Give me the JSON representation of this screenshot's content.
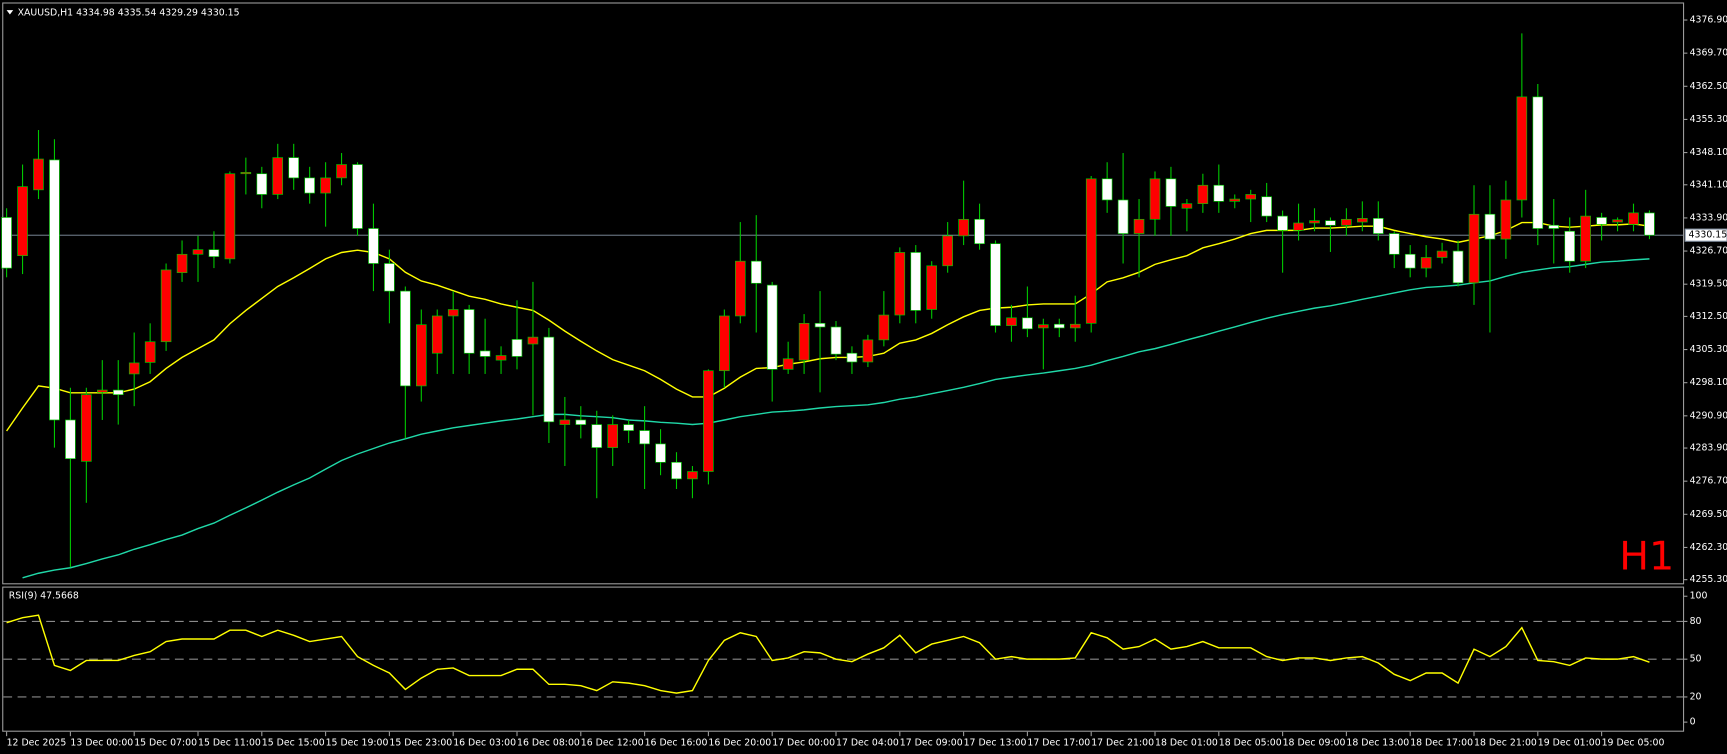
{
  "chart_data": [
    {
      "type": "candlestick",
      "title": "XAUUSD,H1  4334.98 4335.54 4329.29 4330.15",
      "timeframe_label": "H1",
      "timeframe_color": "#ff0000",
      "categories": [
        "12 Dec 2025",
        null,
        null,
        null,
        "13 Dec 00:00",
        null,
        null,
        null,
        "15 Dec 07:00",
        null,
        null,
        null,
        "15 Dec 11:00",
        null,
        null,
        null,
        "15 Dec 15:00",
        null,
        null,
        null,
        "15 Dec 19:00",
        null,
        null,
        null,
        "15 Dec 23:00",
        null,
        null,
        null,
        "16 Dec 03:00",
        null,
        null,
        null,
        "16 Dec 08:00",
        null,
        null,
        null,
        "16 Dec 12:00",
        null,
        null,
        null,
        "16 Dec 16:00",
        null,
        null,
        null,
        "16 Dec 20:00",
        null,
        null,
        null,
        "17 Dec 00:00",
        null,
        null,
        null,
        "17 Dec 04:00",
        null,
        null,
        null,
        "17 Dec 09:00",
        null,
        null,
        null,
        "17 Dec 13:00",
        null,
        null,
        null,
        "17 Dec 17:00",
        null,
        null,
        null,
        "17 Dec 21:00",
        null,
        null,
        null,
        "18 Dec 01:00",
        null,
        null,
        null,
        "18 Dec 05:00",
        null,
        null,
        null,
        "18 Dec 09:00",
        null,
        null,
        null,
        "18 Dec 13:00",
        null,
        null,
        null,
        "18 Dec 17:00",
        null,
        null,
        null,
        "18 Dec 21:00",
        null,
        null,
        null,
        "19 Dec 01:00",
        null,
        null,
        null,
        "19 Dec 05:00",
        null,
        null,
        null
      ],
      "open": [
        4334,
        4325.7,
        4340,
        4346.5,
        4290,
        4281,
        4296,
        4296.5,
        4300,
        4302.5,
        4307,
        4322,
        4326,
        4327,
        4325,
        4343.5,
        4343.5,
        4339,
        4347,
        4342.6,
        4339.3,
        4342.6,
        4345.5,
        4331.6,
        4324,
        4318,
        4297.4,
        4304.5,
        4312.6,
        4314,
        4305,
        4303,
        4307.5,
        4306.5,
        4308,
        4289,
        4290,
        4289,
        4284,
        4289,
        4287.7,
        4284.8,
        4280.8,
        4277.2,
        4278.8,
        4300.7,
        4312.6,
        4324.5,
        4319.3,
        4301,
        4303,
        4311,
        4310.2,
        4304.5,
        4302.6,
        4307.4,
        4312.8,
        4326.4,
        4314,
        4323.5,
        4330,
        4333.6,
        4328.3,
        4310.5,
        4312.2,
        4310,
        4310.8,
        4310,
        4311,
        4342.4,
        4337.8,
        4330.5,
        4333.6,
        4342.4,
        4336,
        4337,
        4341,
        4337.5,
        4338,
        4338.5,
        4334.3,
        4331.2,
        4332.8,
        4333.3,
        4332.3,
        4333,
        4333.8,
        4330.5,
        4326,
        4323,
        4325.3,
        4326.7,
        4319.8,
        4334.7,
        4329.3,
        4337.8,
        4360.2,
        4332.3,
        4331,
        4324.5,
        4334,
        4333,
        4332.5,
        4334.98
      ],
      "high": [
        4336,
        4345.5,
        4353,
        4351,
        4297,
        4297,
        4303,
        4303,
        4309,
        4311,
        4324,
        4329,
        4330,
        4331,
        4344,
        4347,
        4345,
        4350,
        4350,
        4345,
        4346,
        4348,
        4346,
        4337,
        4327,
        4319,
        4314,
        4314,
        4318,
        4315,
        4312,
        4306,
        4316,
        4320,
        4310,
        4295,
        4293,
        4292,
        4291,
        4290,
        4293,
        4288,
        4283,
        4280,
        4301,
        4314,
        4333,
        4334.5,
        4320,
        4307,
        4313,
        4318,
        4311.5,
        4306,
        4308.5,
        4318,
        4327.5,
        4328,
        4324.5,
        4333,
        4342,
        4337,
        4329,
        4315,
        4319,
        4312,
        4312,
        4317,
        4343,
        4346,
        4348,
        4338,
        4344,
        4345,
        4338,
        4343.5,
        4345.5,
        4339,
        4340,
        4341.5,
        4335.5,
        4337,
        4336,
        4334,
        4336,
        4337.5,
        4337.5,
        4331,
        4328,
        4328,
        4328.5,
        4329,
        4341,
        4341,
        4342,
        4374,
        4363,
        4338,
        4334,
        4340,
        4335,
        4334,
        4337,
        4335.54
      ],
      "low": [
        4321,
        4321.7,
        4338,
        4284,
        4258,
        4272,
        4290,
        4289,
        4293,
        4300,
        4305,
        4320,
        4320,
        4323,
        4324,
        4339,
        4336,
        4338,
        4340,
        4337,
        4332,
        4341,
        4330,
        4318,
        4311,
        4286,
        4294,
        4300,
        4300,
        4300,
        4300,
        4300,
        4301,
        4291,
        4285,
        4280,
        4286,
        4273,
        4280,
        4285,
        4275,
        4278,
        4275,
        4273,
        4276,
        4297,
        4311,
        4309,
        4294,
        4300,
        4300,
        4296,
        4303,
        4300,
        4301.5,
        4306,
        4311,
        4311,
        4312,
        4322,
        4328,
        4327,
        4309,
        4307,
        4308,
        4301,
        4308,
        4307,
        4309,
        4335,
        4324,
        4321,
        4330,
        4330,
        4331,
        4335,
        4335,
        4336,
        4333,
        4333,
        4322,
        4329,
        4331,
        4326.5,
        4330,
        4331,
        4329,
        4323,
        4321,
        4321,
        4324,
        4319,
        4315,
        4309,
        4325,
        4334,
        4328,
        4324,
        4322,
        4323,
        4329,
        4331,
        4331,
        4329.29
      ],
      "close": [
        4323,
        4340.7,
        4346.7,
        4290,
        4281.6,
        4295.5,
        4296.5,
        4295.5,
        4302.4,
        4307,
        4322.6,
        4326,
        4327,
        4325.5,
        4343.5,
        4343.8,
        4339,
        4347,
        4342.6,
        4339.3,
        4342.6,
        4345.5,
        4331.6,
        4324,
        4318,
        4297.4,
        4310.7,
        4312.6,
        4314,
        4304.5,
        4303.8,
        4304,
        4303.8,
        4308,
        4289.6,
        4290,
        4289,
        4284,
        4289,
        4287.7,
        4284.8,
        4280.8,
        4277.2,
        4278.8,
        4300.7,
        4312.6,
        4324.5,
        4319.7,
        4301,
        4303.3,
        4311,
        4310.2,
        4304.3,
        4302.6,
        4307.4,
        4312.8,
        4326.4,
        4313.8,
        4323.5,
        4330,
        4333.6,
        4328.3,
        4310.5,
        4312.2,
        4309.8,
        4310.7,
        4310,
        4310.8,
        4342.4,
        4337.8,
        4330.5,
        4333.6,
        4342.4,
        4336.4,
        4337,
        4341,
        4337.5,
        4338,
        4339,
        4334.3,
        4331.2,
        4332.8,
        4333.3,
        4332.3,
        4333.6,
        4333.8,
        4330.5,
        4326,
        4323,
        4325.3,
        4326.7,
        4319.8,
        4334.7,
        4329.3,
        4337.8,
        4360.2,
        4331.6,
        4331.6,
        4324.5,
        4334.3,
        4332.5,
        4333.5,
        4335,
        4330.15
      ],
      "up_color": "#ff0000",
      "down_color": "#ffffff",
      "wick_color": "#00c800",
      "series": [
        {
          "color": "#ffff00",
          "values": [
            4287.6,
            4292.6,
            4297.4,
            4296.9,
            4295.9,
            4295.9,
            4295.9,
            4295.9,
            4296.7,
            4298.3,
            4301.2,
            4303.6,
            4305.5,
            4307.4,
            4310.9,
            4313.8,
            4316.4,
            4319.0,
            4320.9,
            4322.9,
            4325.0,
            4326.4,
            4326.9,
            4326.4,
            4325.0,
            4322.1,
            4320.2,
            4319.3,
            4318.1,
            4316.9,
            4316.2,
            4315.2,
            4314.5,
            4313.8,
            4311.7,
            4309.3,
            4307.1,
            4305.0,
            4303.1,
            4301.9,
            4300.7,
            4298.8,
            4296.7,
            4295.0,
            4295.0,
            4296.9,
            4299.3,
            4301.2,
            4301.4,
            4302.1,
            4302.6,
            4303.3,
            4303.6,
            4303.6,
            4303.8,
            4304.5,
            4306.7,
            4307.4,
            4308.8,
            4310.7,
            4312.4,
            4313.8,
            4314.3,
            4314.5,
            4315.0,
            4315.2,
            4315.2,
            4315.2,
            4317.4,
            4320.0,
            4320.9,
            4322.1,
            4323.8,
            4324.8,
            4325.7,
            4327.4,
            4328.3,
            4329.3,
            4330.5,
            4331.2,
            4331.2,
            4331.2,
            4331.7,
            4331.7,
            4331.9,
            4332.1,
            4332.1,
            4331.2,
            4330.5,
            4329.8,
            4329.3,
            4328.6,
            4329.3,
            4330.0,
            4331.2,
            4332.9,
            4332.9,
            4332.1,
            4331.9,
            4332.1,
            4332.4,
            4332.4,
            4332.6,
            4332.1
          ]
        },
        {
          "color": "#20d8a8",
          "values": [
            null,
            4255.7,
            4256.7,
            4257.4,
            4257.9,
            4258.8,
            4259.8,
            4260.7,
            4261.9,
            4262.9,
            4264.0,
            4265.0,
            4266.4,
            4267.6,
            4269.3,
            4270.9,
            4272.6,
            4274.3,
            4275.9,
            4277.4,
            4279.3,
            4281.2,
            4282.6,
            4283.8,
            4285.0,
            4285.9,
            4286.9,
            4287.6,
            4288.3,
            4288.8,
            4289.3,
            4289.8,
            4290.2,
            4290.7,
            4291.2,
            4291.2,
            4290.9,
            4290.7,
            4290.5,
            4290.0,
            4289.8,
            4289.5,
            4289.3,
            4289.0,
            4289.3,
            4290.0,
            4290.7,
            4291.2,
            4291.7,
            4291.9,
            4292.2,
            4292.6,
            4292.9,
            4293.1,
            4293.3,
            4293.8,
            4294.5,
            4295.0,
            4295.7,
            4296.4,
            4297.1,
            4297.9,
            4298.8,
            4299.3,
            4299.8,
            4300.2,
            4300.7,
            4301.2,
            4301.9,
            4302.9,
            4303.8,
            4304.8,
            4305.5,
            4306.4,
            4307.4,
            4308.3,
            4309.3,
            4310.2,
            4311.2,
            4312.1,
            4312.9,
            4313.6,
            4314.3,
            4314.8,
            4315.5,
            4316.2,
            4316.9,
            4317.6,
            4318.3,
            4318.8,
            4319.0,
            4319.3,
            4319.8,
            4320.2,
            4321.2,
            4322.1,
            4322.6,
            4323.1,
            4323.3,
            4323.8,
            4324.3,
            4324.5,
            4324.8,
            4325.0
          ]
        }
      ],
      "ylim": [
        4255.0,
        4380.0
      ],
      "yticks": [
        {
          "value": 4376.9,
          "label": "4376.90"
        },
        {
          "value": 4369.7,
          "label": "4369.70"
        },
        {
          "value": 4362.5,
          "label": "4362.50"
        },
        {
          "value": 4355.3,
          "label": "4355.30"
        },
        {
          "value": 4348.1,
          "label": "4348.10"
        },
        {
          "value": 4341.1,
          "label": "4341.10"
        },
        {
          "value": 4333.9,
          "label": "4333.90"
        },
        {
          "value": 4326.7,
          "label": "4326.70"
        },
        {
          "value": 4319.5,
          "label": "4319.50"
        },
        {
          "value": 4312.5,
          "label": "4312.50"
        },
        {
          "value": 4305.3,
          "label": "4305.30"
        },
        {
          "value": 4298.1,
          "label": "4298.10"
        },
        {
          "value": 4290.9,
          "label": "4290.90"
        },
        {
          "value": 4283.9,
          "label": "4283.90"
        },
        {
          "value": 4276.7,
          "label": "4276.70"
        },
        {
          "value": 4269.5,
          "label": "4269.50"
        },
        {
          "value": 4262.3,
          "label": "4262.30"
        },
        {
          "value": 4255.3,
          "label": "4255.30"
        }
      ],
      "last_price": 4330.15,
      "last_price_color": "#8896a8",
      "grid": false
    },
    {
      "type": "line",
      "title": "RSI(9) 47.5668",
      "color": "#ffff00",
      "values": [
        79,
        83,
        85,
        45,
        41,
        49,
        49,
        49,
        53,
        56,
        64,
        66,
        66,
        66,
        73,
        73,
        68,
        73,
        69,
        64,
        66,
        68,
        52,
        45,
        39,
        26,
        35,
        42,
        43,
        37,
        37,
        37,
        42,
        42,
        30,
        30,
        29,
        25,
        32,
        31,
        29,
        25,
        23,
        25,
        49,
        65,
        71,
        68,
        49,
        51,
        56,
        55,
        50,
        48,
        54,
        59,
        69,
        55,
        62,
        65,
        68,
        63,
        50,
        52,
        50,
        50,
        50,
        51,
        71,
        67,
        58,
        60,
        66,
        58,
        60,
        64,
        59,
        59,
        59,
        52,
        49,
        51,
        51,
        49,
        51,
        52,
        47,
        38,
        33,
        39,
        39,
        31,
        58,
        52,
        60,
        75,
        49,
        48,
        45,
        51,
        50,
        50,
        52,
        47.5668
      ],
      "ylim": [
        -5.9,
        104.2
      ],
      "yticks": [
        100,
        80,
        50,
        20,
        0
      ],
      "levels": [
        80,
        50,
        20
      ],
      "level_color": "#8a8a8a"
    }
  ]
}
